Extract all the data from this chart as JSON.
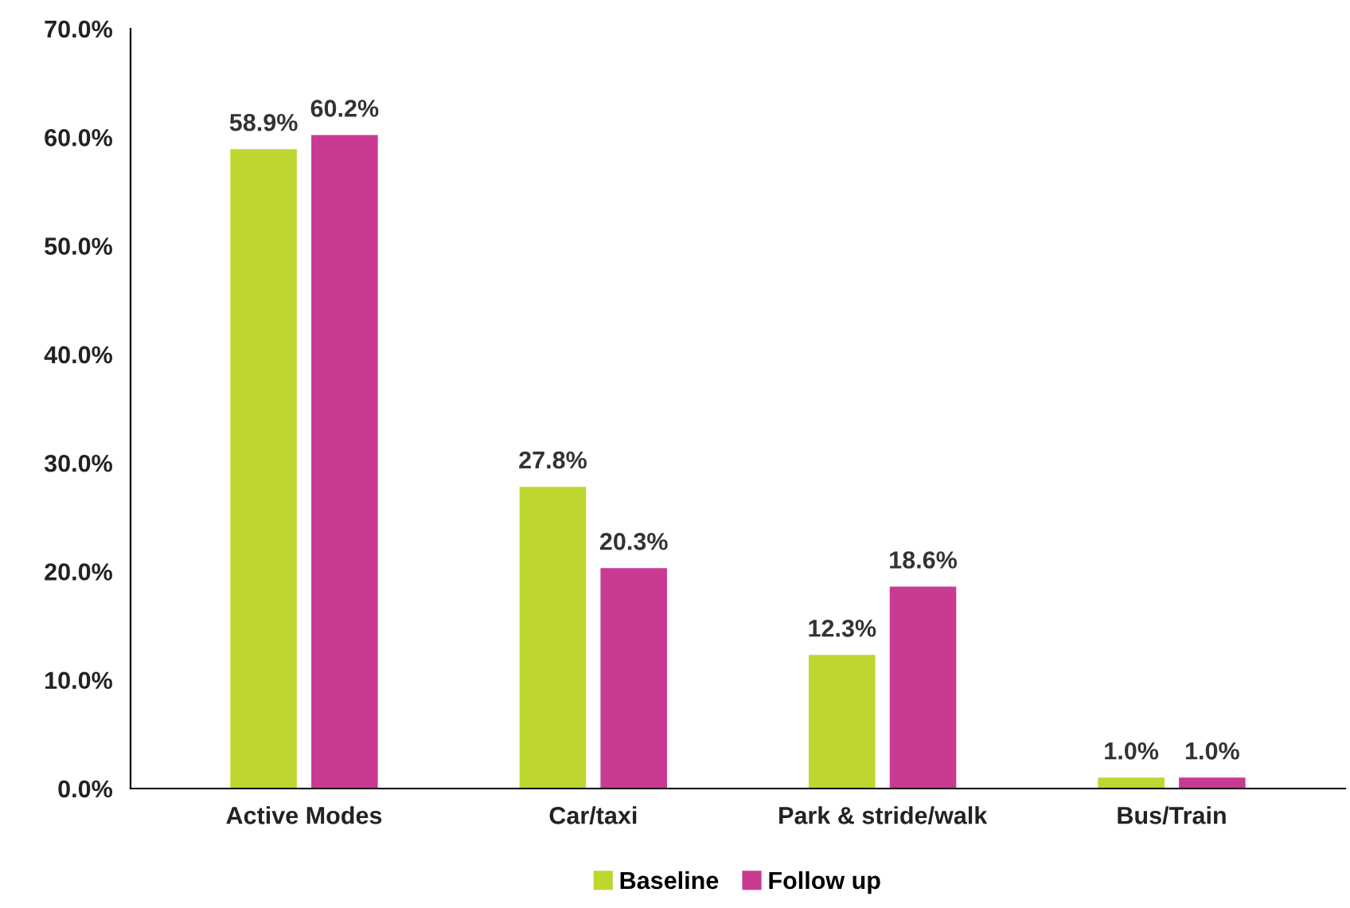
{
  "chart_data": {
    "type": "bar",
    "categories": [
      "Active Modes",
      "Car/taxi",
      "Park & stride/walk",
      "Bus/Train"
    ],
    "series": [
      {
        "name": "Baseline",
        "color": "#c0d630",
        "values": [
          58.9,
          27.8,
          12.3,
          1.0
        ],
        "value_labels": [
          "58.9%",
          "27.8%",
          "12.3%",
          "1.0%"
        ]
      },
      {
        "name": "Follow up",
        "color": "#c93a93",
        "values": [
          60.2,
          20.3,
          18.6,
          1.0
        ],
        "value_labels": [
          "60.2%",
          "20.3%",
          "18.6%",
          "1.0%"
        ]
      }
    ],
    "ylim": [
      0,
      70
    ],
    "yticks": [
      {
        "value": 0,
        "label": "0.0%"
      },
      {
        "value": 10,
        "label": "10.0%"
      },
      {
        "value": 20,
        "label": "20.0%"
      },
      {
        "value": 30,
        "label": "30.0%"
      },
      {
        "value": 40,
        "label": "40.0%"
      },
      {
        "value": 50,
        "label": "50.0%"
      },
      {
        "value": 60,
        "label": "60.0%"
      },
      {
        "value": 70,
        "label": "70.0%"
      }
    ],
    "grid": false,
    "legend": "bottom"
  }
}
